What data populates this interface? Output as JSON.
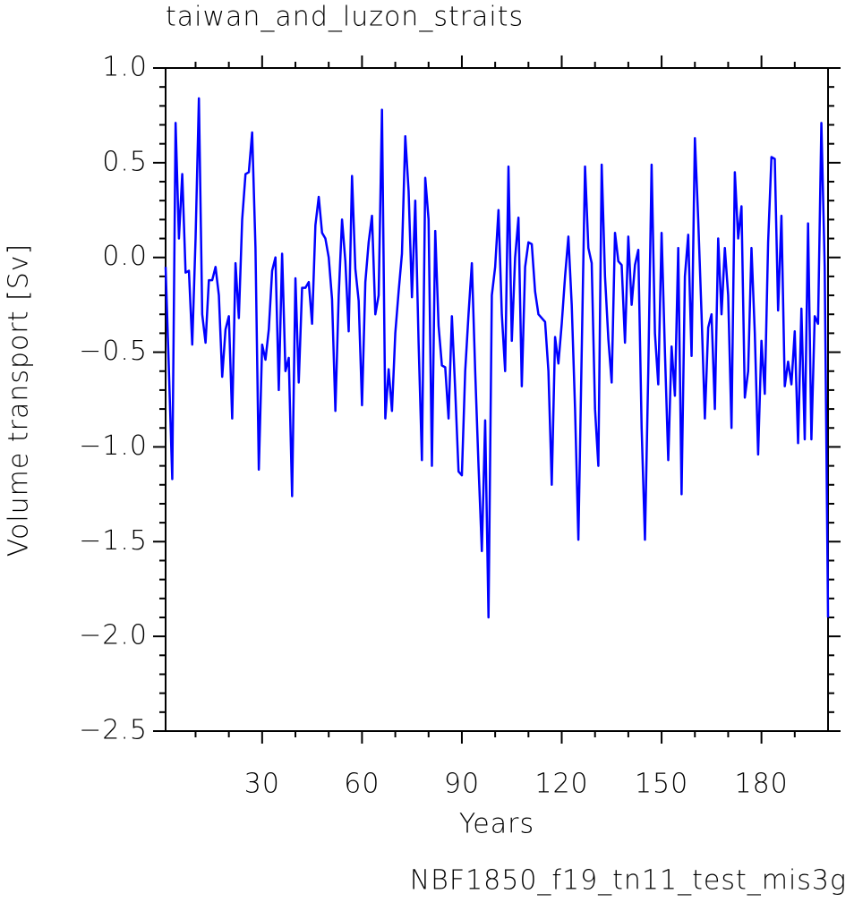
{
  "chart_data": {
    "type": "line",
    "title": "taiwan_and_luzon_straits",
    "xlabel": "Years",
    "ylabel": "Volume transport [Sv]",
    "annotation": "NBF1850_f19_tn11_test_mis3g",
    "annotation_color": "#3232ff",
    "color": "#0000ff",
    "xlim": [
      1,
      200
    ],
    "ylim": [
      -2.5,
      1.0
    ],
    "xticks": [
      30,
      60,
      90,
      120,
      150,
      180
    ],
    "xminorticks": [
      10,
      20,
      40,
      50,
      70,
      80,
      100,
      110,
      130,
      140,
      160,
      170,
      190
    ],
    "yticks": [
      {
        "value": 1.0,
        "label": "1.0"
      },
      {
        "value": 0.5,
        "label": "0.5"
      },
      {
        "value": 0,
        "label": "0.0"
      },
      {
        "value": -0.5,
        "label": "−0.5"
      },
      {
        "value": -1.0,
        "label": "−1.0"
      },
      {
        "value": -1.5,
        "label": "−1.5"
      },
      {
        "value": -2.0,
        "label": "−2.0"
      },
      {
        "value": -2.5,
        "label": "−2.5"
      }
    ],
    "yminorticks": [
      0.9,
      0.8,
      0.7,
      0.6,
      0.4,
      0.3,
      0.2,
      0.1,
      -0.1,
      -0.2,
      -0.3,
      -0.4,
      -0.6,
      -0.7,
      -0.8,
      -0.9,
      -1.1,
      -1.2,
      -1.3,
      -1.4,
      -1.6,
      -1.7,
      -1.8,
      -1.9,
      -2.1,
      -2.2,
      -2.3,
      -2.4
    ],
    "x": [
      1,
      2,
      3,
      4,
      5,
      6,
      7,
      8,
      9,
      10,
      11,
      12,
      13,
      14,
      15,
      16,
      17,
      18,
      19,
      20,
      21,
      22,
      23,
      24,
      25,
      26,
      27,
      28,
      29,
      30,
      31,
      32,
      33,
      34,
      35,
      36,
      37,
      38,
      39,
      40,
      41,
      42,
      43,
      44,
      45,
      46,
      47,
      48,
      49,
      50,
      51,
      52,
      53,
      54,
      55,
      56,
      57,
      58,
      59,
      60,
      61,
      62,
      63,
      64,
      65,
      66,
      67,
      68,
      69,
      70,
      71,
      72,
      73,
      74,
      75,
      76,
      77,
      78,
      79,
      80,
      81,
      82,
      83,
      84,
      85,
      86,
      87,
      88,
      89,
      90,
      91,
      92,
      93,
      94,
      95,
      96,
      97,
      98,
      99,
      100,
      101,
      102,
      103,
      104,
      105,
      106,
      107,
      108,
      109,
      110,
      111,
      112,
      113,
      114,
      115,
      116,
      117,
      118,
      119,
      120,
      121,
      122,
      123,
      124,
      125,
      126,
      127,
      128,
      129,
      130,
      131,
      132,
      133,
      134,
      135,
      136,
      137,
      138,
      139,
      140,
      141,
      142,
      143,
      144,
      145,
      146,
      147,
      148,
      149,
      150,
      151,
      152,
      153,
      154,
      155,
      156,
      157,
      158,
      159,
      160,
      161,
      162,
      163,
      164,
      165,
      166,
      167,
      168,
      169,
      170,
      171,
      172,
      173,
      174,
      175,
      176,
      177,
      178,
      179,
      180,
      181,
      182,
      183,
      184,
      185,
      186,
      187,
      188,
      189,
      190,
      191,
      192,
      193,
      194,
      195,
      196,
      197,
      198,
      199,
      200
    ],
    "y": [
      -0.05,
      -0.6,
      -1.17,
      0.71,
      0.1,
      0.44,
      -0.08,
      -0.07,
      -0.46,
      0.1,
      0.84,
      -0.3,
      -0.45,
      -0.12,
      -0.12,
      -0.05,
      -0.2,
      -0.63,
      -0.38,
      -0.31,
      -0.85,
      -0.03,
      -0.32,
      0.2,
      0.44,
      0.45,
      0.66,
      0.05,
      -1.12,
      -0.46,
      -0.54,
      -0.38,
      -0.07,
      0.0,
      -0.7,
      0.02,
      -0.6,
      -0.53,
      -1.26,
      -0.11,
      -0.66,
      -0.16,
      -0.16,
      -0.13,
      -0.35,
      0.17,
      0.32,
      0.13,
      0.1,
      0.0,
      -0.22,
      -0.81,
      -0.2,
      0.2,
      -0.02,
      -0.39,
      0.43,
      -0.06,
      -0.23,
      -0.78,
      -0.13,
      0.08,
      0.22,
      -0.3,
      -0.2,
      0.78,
      -0.85,
      -0.59,
      -0.81,
      -0.4,
      -0.18,
      0.02,
      0.64,
      0.35,
      -0.21,
      0.3,
      -0.45,
      -1.07,
      0.42,
      0.2,
      -1.1,
      0.14,
      -0.36,
      -0.57,
      -0.58,
      -0.85,
      -0.31,
      -0.7,
      -1.13,
      -1.15,
      -0.6,
      -0.3,
      -0.03,
      -0.6,
      -1.1,
      -1.55,
      -0.86,
      -1.9,
      -0.2,
      -0.05,
      0.25,
      -0.3,
      -0.6,
      0.48,
      -0.44,
      0.0,
      0.21,
      -0.68,
      -0.05,
      0.08,
      0.07,
      -0.18,
      -0.3,
      -0.32,
      -0.34,
      -0.6,
      -1.2,
      -0.42,
      -0.56,
      -0.35,
      -0.1,
      0.11,
      -0.25,
      -0.8,
      -1.49,
      -0.5,
      0.48,
      0.05,
      -0.03,
      -0.8,
      -1.1,
      0.49,
      -0.1,
      -0.43,
      -0.66,
      0.13,
      -0.02,
      -0.04,
      -0.45,
      0.11,
      -0.25,
      -0.04,
      0.04,
      -0.9,
      -1.49,
      -0.6,
      0.49,
      -0.4,
      -0.67,
      0.13,
      -0.5,
      -1.07,
      -0.47,
      -0.73,
      0.05,
      -1.25,
      -0.1,
      0.12,
      -0.52,
      0.63,
      0.2,
      -0.3,
      -0.85,
      -0.37,
      -0.3,
      -0.8,
      0.1,
      -0.3,
      0.05,
      -0.2,
      -0.9,
      0.45,
      0.1,
      0.27,
      -0.74,
      -0.6,
      0.05,
      -0.4,
      -1.04,
      -0.44,
      -0.72,
      0.08,
      0.53,
      0.52,
      -0.28,
      0.22,
      -0.68,
      -0.55,
      -0.67,
      -0.39,
      -0.98,
      -0.27,
      -0.96,
      0.18,
      -0.96,
      -0.31,
      -0.35,
      0.71,
      -0.05,
      -1.9
    ]
  }
}
